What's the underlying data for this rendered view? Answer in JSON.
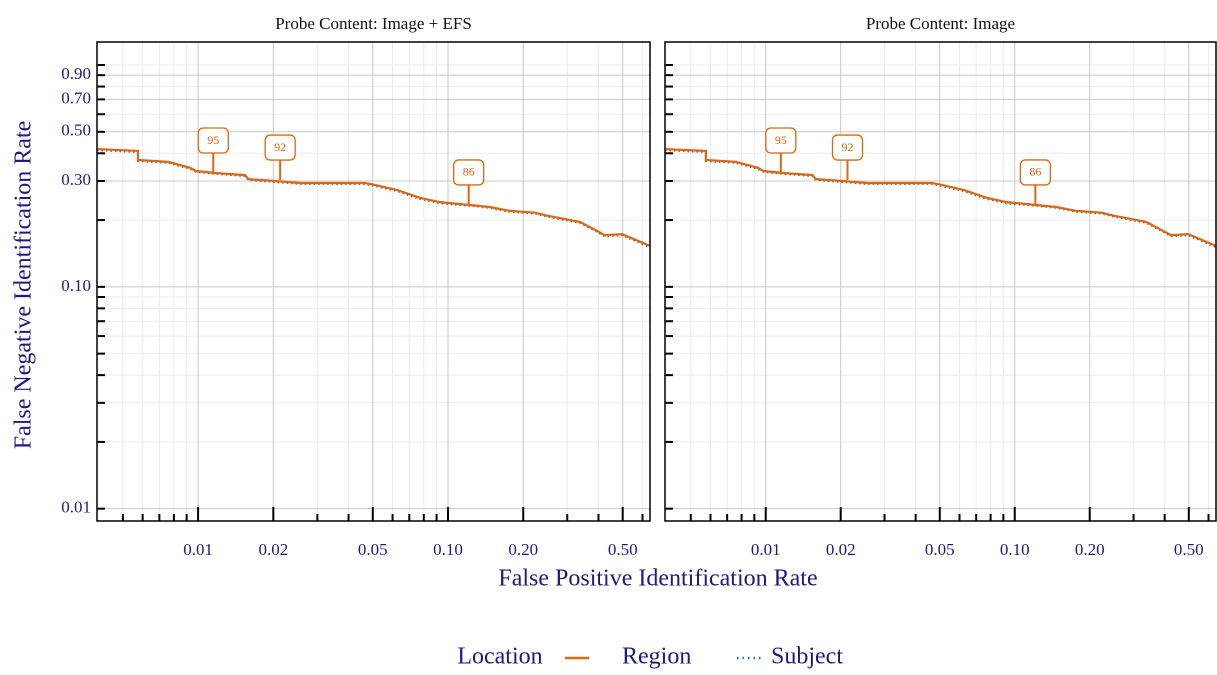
{
  "x_label": "False Positive Identification Rate",
  "y_label": "False Negative Identification Rate",
  "legend": {
    "title": "Location",
    "position": "bottom"
  },
  "chart_data": [
    {
      "type": "line",
      "title": "Probe Content: Image + EFS",
      "log_x": true,
      "log_y": true,
      "grid": true,
      "show_ytick_labels": true,
      "xlim": [
        0.00394,
        0.643
      ],
      "ylim": [
        0.0088,
        1.27
      ],
      "xticks": [
        0.01,
        0.02,
        0.05,
        {
          "value": 0.1,
          "label": "0.10"
        },
        {
          "value": 0.2,
          "label": "0.20"
        },
        {
          "value": 0.5,
          "label": "0.50"
        }
      ],
      "yticks": [
        0.01,
        {
          "value": 0.1,
          "label": "0.10"
        },
        {
          "value": 0.3,
          "label": "0.30"
        },
        {
          "value": 0.5,
          "label": "0.50"
        },
        {
          "value": 0.7,
          "label": "0.70"
        },
        {
          "value": 0.9,
          "label": "0.90"
        }
      ],
      "minor_xticks": [
        0.005,
        0.006,
        0.007,
        0.008,
        0.009,
        0.03,
        0.04,
        0.06,
        0.07,
        0.08,
        0.09,
        0.3,
        0.4,
        0.6
      ],
      "minor_yticks": [
        0.02,
        0.03,
        0.04,
        0.05,
        0.06,
        0.07,
        0.08,
        0.09,
        0.2,
        0.4,
        0.6,
        0.8,
        1.0
      ],
      "x": [
        0.00394,
        0.00575,
        0.00575,
        0.0076,
        0.0093,
        0.0098,
        0.0117,
        0.0154,
        0.0159,
        0.0203,
        0.0256,
        0.0465,
        0.051,
        0.0626,
        0.0771,
        0.0925,
        0.122,
        0.147,
        0.177,
        0.223,
        0.251,
        0.294,
        0.338,
        0.394,
        0.424,
        0.497,
        0.643
      ],
      "series": [
        {
          "name": "Region",
          "color": "#e0650f",
          "style": "solid",
          "values": [
            0.418,
            0.41,
            0.373,
            0.366,
            0.344,
            0.333,
            0.326,
            0.319,
            0.306,
            0.3,
            0.294,
            0.294,
            0.288,
            0.273,
            0.252,
            0.241,
            0.234,
            0.229,
            0.22,
            0.216,
            0.209,
            0.202,
            0.196,
            0.179,
            0.171,
            0.173,
            0.153
          ]
        },
        {
          "name": "Subject",
          "color": "#1f78b4",
          "style": "dotted",
          "values": [
            0.413,
            0.405,
            0.369,
            0.362,
            0.34,
            0.33,
            0.323,
            0.316,
            0.303,
            0.297,
            0.291,
            0.291,
            0.285,
            0.27,
            0.249,
            0.238,
            0.232,
            0.227,
            0.218,
            0.214,
            0.207,
            0.2,
            0.194,
            0.177,
            0.169,
            0.171,
            0.151
          ]
        }
      ],
      "annotations": [
        {
          "text": "95",
          "x": 0.0115,
          "y": 0.326
        },
        {
          "text": "92",
          "x": 0.0213,
          "y": 0.303
        },
        {
          "text": "86",
          "x": 0.121,
          "y": 0.234
        }
      ]
    },
    {
      "type": "line",
      "title": "Probe Content: Image",
      "log_x": true,
      "log_y": true,
      "grid": true,
      "show_ytick_labels": false,
      "xlim": [
        0.00394,
        0.643
      ],
      "ylim": [
        0.0088,
        1.27
      ],
      "xticks": [
        0.01,
        0.02,
        0.05,
        {
          "value": 0.1,
          "label": "0.10"
        },
        {
          "value": 0.2,
          "label": "0.20"
        },
        {
          "value": 0.5,
          "label": "0.50"
        }
      ],
      "yticks": [
        0.01,
        0.1,
        0.3,
        0.5,
        0.7,
        0.9
      ],
      "minor_xticks": [
        0.005,
        0.006,
        0.007,
        0.008,
        0.009,
        0.03,
        0.04,
        0.06,
        0.07,
        0.08,
        0.09,
        0.3,
        0.4,
        0.6
      ],
      "minor_yticks": [
        0.02,
        0.03,
        0.04,
        0.05,
        0.06,
        0.07,
        0.08,
        0.09,
        0.2,
        0.4,
        0.6,
        0.8,
        1.0
      ],
      "x": [
        0.00394,
        0.00575,
        0.00575,
        0.0076,
        0.0093,
        0.0098,
        0.0117,
        0.0154,
        0.0159,
        0.0203,
        0.0256,
        0.0465,
        0.051,
        0.0626,
        0.0771,
        0.0925,
        0.122,
        0.147,
        0.177,
        0.223,
        0.251,
        0.294,
        0.338,
        0.394,
        0.424,
        0.497,
        0.643
      ],
      "series": [
        {
          "name": "Region",
          "color": "#e0650f",
          "style": "solid",
          "values": [
            0.418,
            0.41,
            0.373,
            0.366,
            0.344,
            0.333,
            0.326,
            0.319,
            0.306,
            0.3,
            0.294,
            0.294,
            0.288,
            0.273,
            0.252,
            0.241,
            0.234,
            0.229,
            0.22,
            0.216,
            0.209,
            0.202,
            0.196,
            0.179,
            0.171,
            0.173,
            0.153
          ]
        },
        {
          "name": "Subject",
          "color": "#1f78b4",
          "style": "dotted",
          "values": [
            0.413,
            0.405,
            0.369,
            0.362,
            0.34,
            0.33,
            0.323,
            0.316,
            0.303,
            0.297,
            0.291,
            0.291,
            0.285,
            0.27,
            0.249,
            0.238,
            0.232,
            0.227,
            0.218,
            0.214,
            0.207,
            0.2,
            0.194,
            0.177,
            0.169,
            0.171,
            0.151
          ]
        }
      ],
      "annotations": [
        {
          "text": "95",
          "x": 0.0115,
          "y": 0.326
        },
        {
          "text": "92",
          "x": 0.0213,
          "y": 0.303
        },
        {
          "text": "86",
          "x": 0.121,
          "y": 0.234
        }
      ]
    }
  ]
}
